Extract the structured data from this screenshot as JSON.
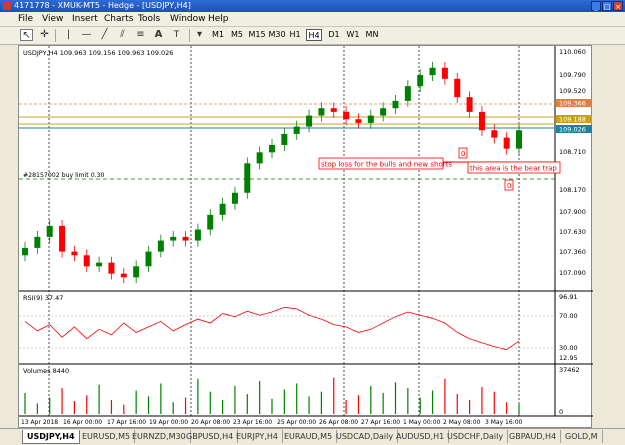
{
  "window": {
    "title": "4171778 - XMUK-MT5 - Hedge - [USDJPY,H4]",
    "min": "_",
    "max": "□",
    "close": "×"
  },
  "menu": [
    "File",
    "View",
    "Insert",
    "Charts",
    "Tools",
    "Window",
    "Help"
  ],
  "toolbar": {
    "tools": [
      "cursor-icon",
      "crosshair-icon",
      "vertical-line-icon",
      "horizontal-line-icon",
      "trendline-icon",
      "channel-icon",
      "fibonacci-icon",
      "text-icon",
      "label-icon"
    ],
    "timeframes": [
      "M1",
      "M5",
      "M15",
      "M30",
      "H1",
      "H4",
      "D1",
      "W1",
      "MN"
    ],
    "active_timeframe": "H4"
  },
  "chart_header": {
    "symbol_line": "USDJPY,H4  109.963 109.156 109.963 109.026"
  },
  "price_axis": {
    "labels": [
      "110.060",
      "109.790",
      "109.520",
      "109.366",
      "109.188",
      "109.026",
      "108.710",
      "108.170",
      "107.900",
      "107.630",
      "107.360",
      "107.090"
    ]
  },
  "time_axis": {
    "labels": [
      "13 Apr 2018",
      "16 Apr 00:00",
      "17 Apr 16:00",
      "19 Apr 00:00",
      "20 Apr 08:00",
      "23 Apr 16:00",
      "25 Apr 00:00",
      "26 Apr 08:00",
      "27 Apr 16:00",
      "1 May 00:00",
      "2 May 08:00",
      "3 May 16:00"
    ]
  },
  "annotations": {
    "order_line": "#28157002 buy limit 0.30",
    "note1": "stop loss for the bulls and new shorts",
    "note2": "this area is the bear trap",
    "marker1": "0",
    "marker2": "0"
  },
  "rsi": {
    "label": "RSI(9) 37.47",
    "levels": [
      "96.91",
      "70.00",
      "30.00",
      "12.95"
    ]
  },
  "volume": {
    "label": "Volumes 8440",
    "levels": [
      "37462",
      "0"
    ]
  },
  "tabs": [
    "USDJPY,H4",
    "EURUSD,M5",
    "EURNZD,M30",
    "GBPUSD,H4",
    "EURJPY,H4",
    "EURAUD,M5",
    "USDCAD,Daily",
    "AUDUSD,H1",
    "USDCHF,Daily",
    "GBPAUD,H4",
    "GOLD,M"
  ],
  "active_tab": "USDJPY,H4",
  "colors": {
    "bull": "#008000",
    "bear": "#ff0000",
    "stoploss": "#ff0000",
    "orderline": "#008000",
    "level_orange": "#e08040",
    "level_gold": "#c8a020",
    "level_teal": "#2080a0"
  },
  "chart_data": [
    {
      "type": "line",
      "title": "USDJPY,H4",
      "y_labels": [
        "110.060",
        "109.790",
        "109.520",
        "109.366",
        "109.188",
        "109.026",
        "108.710",
        "108.170",
        "107.900",
        "107.630",
        "107.360",
        "107.090"
      ],
      "x_labels": [
        "13 Apr 2018",
        "16 Apr 00:00",
        "17 Apr 16:00",
        "19 Apr 00:00",
        "20 Apr 08:00",
        "23 Apr 16:00",
        "25 Apr 00:00",
        "26 Apr 08:00",
        "27 Apr 16:00",
        "1 May 00:00",
        "2 May 08:00",
        "3 May 16:00"
      ],
      "close": [
        107.45,
        107.6,
        107.75,
        107.4,
        107.35,
        107.2,
        107.25,
        107.1,
        107.05,
        107.2,
        107.4,
        107.55,
        107.6,
        107.55,
        107.7,
        107.9,
        108.05,
        108.2,
        108.6,
        108.75,
        108.85,
        109.0,
        109.1,
        109.25,
        109.35,
        109.3,
        109.2,
        109.15,
        109.25,
        109.35,
        109.45,
        109.65,
        109.8,
        109.9,
        109.75,
        109.5,
        109.3,
        109.05,
        108.95,
        108.8,
        109.05
      ]
    },
    {
      "type": "line",
      "title": "RSI(9) 37.47",
      "y_labels": [
        "96.91",
        "70.00",
        "30.00",
        "12.95"
      ],
      "values": [
        62,
        50,
        58,
        42,
        55,
        40,
        52,
        45,
        60,
        48,
        55,
        62,
        50,
        58,
        65,
        60,
        72,
        68,
        75,
        70,
        74,
        80,
        78,
        70,
        65,
        58,
        55,
        48,
        52,
        60,
        68,
        74,
        70,
        66,
        60,
        48,
        40,
        35,
        30,
        26,
        37
      ]
    },
    {
      "type": "bar",
      "title": "Volumes 8440",
      "y_labels": [
        "37462",
        "0"
      ],
      "values": [
        18000,
        9000,
        14000,
        22000,
        11000,
        16000,
        25000,
        12000,
        8000,
        20000,
        15000,
        26000,
        10000,
        14000,
        30000,
        19000,
        12000,
        24000,
        17000,
        28000,
        13000,
        21000,
        26000,
        15000,
        19000,
        31000,
        12000,
        16000,
        24000,
        18000,
        27000,
        22000,
        14000,
        20000,
        30000,
        17000,
        12000,
        23000,
        19000,
        10000,
        8440
      ]
    }
  ]
}
